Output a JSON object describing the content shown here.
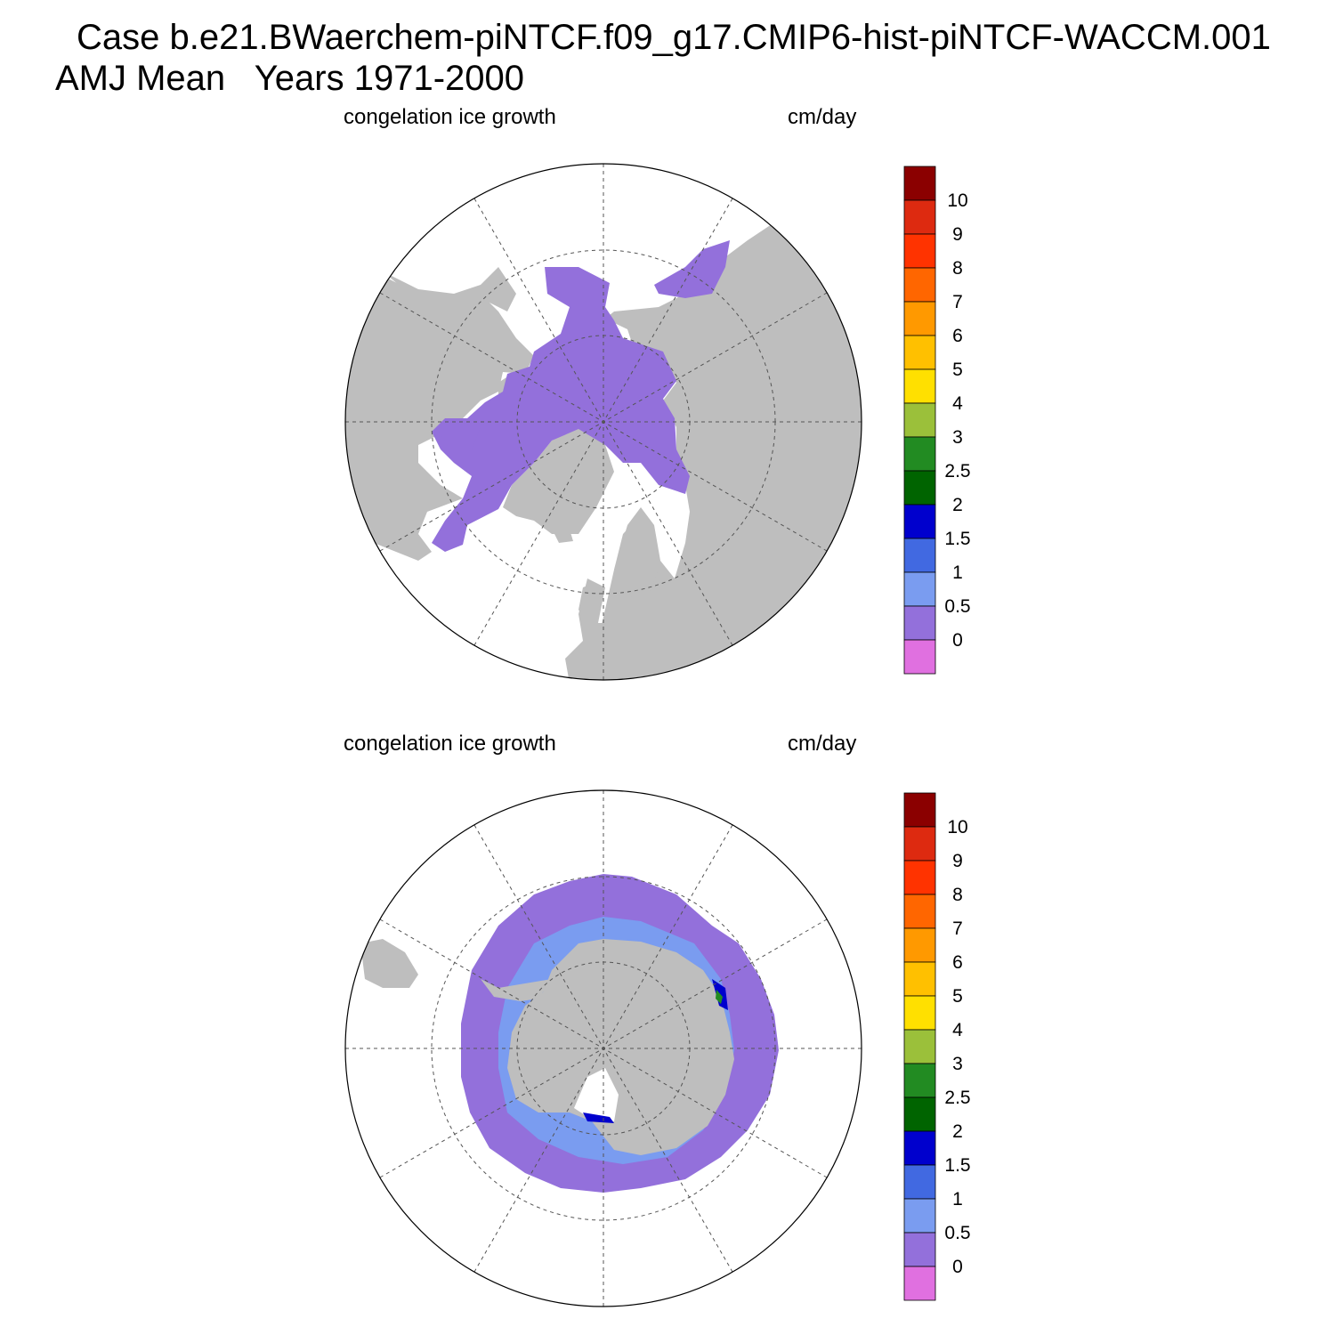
{
  "title": {
    "line1": "Case b.e21.BWaerchem-piNTCF.f09_g17.CMIP6-hist-piNTCF-WACCM.001",
    "line2": "AMJ Mean   Years 1971-2000"
  },
  "colors": {
    "land": "#bebebe",
    "ocean_no_ice": "#ffffff",
    "grid": "#555555"
  },
  "colorbar": {
    "labels": [
      "10",
      "9",
      "8",
      "7",
      "6",
      "5",
      "4",
      "3",
      "2.5",
      "2",
      "1.5",
      "1",
      "0.5",
      "0"
    ],
    "colors": [
      "#8b0000",
      "#dd2a10",
      "#ff3300",
      "#ff6600",
      "#ff9900",
      "#ffc000",
      "#ffe000",
      "#9bc03a",
      "#228b22",
      "#006400",
      "#0000cd",
      "#4169e1",
      "#7a9cf0",
      "#9370db",
      "#e070e0"
    ]
  },
  "panels": [
    {
      "id": "north",
      "hemisphere": "Northern Hemisphere",
      "left_label": "congelation ice growth",
      "right_label": "cm/day"
    },
    {
      "id": "south",
      "hemisphere": "Southern Hemisphere",
      "left_label": "congelation ice growth",
      "right_label": "cm/day"
    }
  ]
}
